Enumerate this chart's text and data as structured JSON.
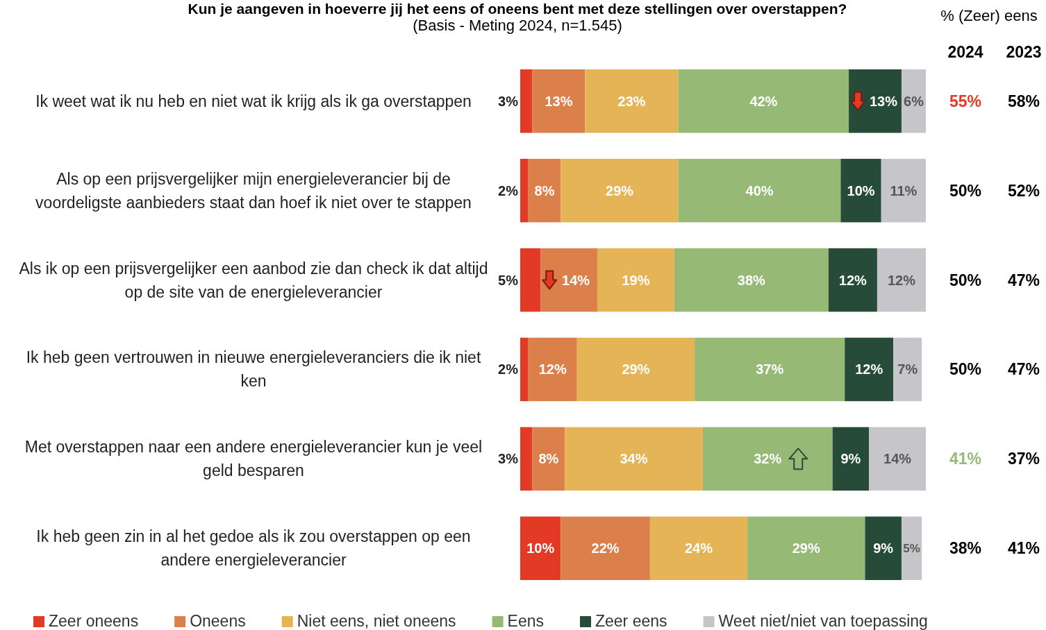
{
  "chart_data": {
    "type": "bar",
    "orientation": "horizontal",
    "stacked": true,
    "title": "Kun je aangeven in hoeverre jij het eens of oneens bent met deze stellingen over overstappen?",
    "subtitle": "(Basis - Meting 2024, n=1.545)",
    "categories": [
      "Ik weet wat ik nu heb en niet wat ik krijg als ik ga overstappen",
      "Als op een prijsvergelijker mijn energieleverancier bij de voordeligste aanbieders staat dan hoef ik niet over te stappen",
      "Als ik op een prijsvergelijker een aanbod zie dan check ik dat altijd op de site van de energieleverancier",
      "Ik heb geen vertrouwen in nieuwe energieleveranciers die ik niet ken",
      "Met overstappen naar een andere energieleverancier kun je veel geld besparen",
      "Ik heb geen zin in al het gedoe als ik zou overstappen op een andere energieleverancier"
    ],
    "tick_labels": "y",
    "legend": "bottom",
    "series": [
      {
        "name": "Zeer oneens",
        "color": "#e33a26",
        "values": [
          3,
          2,
          5,
          2,
          3,
          10
        ],
        "value_labels": [
          "3%",
          "2%",
          "5%",
          "2%",
          "3%",
          "10%"
        ]
      },
      {
        "name": "Oneens",
        "color": "#dc804b",
        "values": [
          13,
          8,
          14,
          12,
          8,
          22
        ],
        "value_labels": [
          "13%",
          "8%",
          "14%",
          "12%",
          "8%",
          "22%"
        ]
      },
      {
        "name": "Niet eens, niet oneens",
        "color": "#e4b457",
        "values": [
          23,
          29,
          19,
          29,
          34,
          24
        ],
        "value_labels": [
          "23%",
          "29%",
          "19%",
          "29%",
          "34%",
          "24%"
        ]
      },
      {
        "name": "Eens",
        "color": "#96ba76",
        "values": [
          42,
          40,
          38,
          37,
          32,
          29
        ],
        "value_labels": [
          "42%",
          "40%",
          "38%",
          "37%",
          "32%",
          "29%"
        ]
      },
      {
        "name": "Zeer eens",
        "color": "#264b39",
        "values": [
          13,
          10,
          12,
          12,
          9,
          9
        ],
        "value_labels": [
          "13%",
          "10%",
          "12%",
          "12%",
          "9%",
          "9%"
        ]
      },
      {
        "name": "Weet niet/niet van toepassing",
        "color": "#c6c5c9",
        "values": [
          6,
          11,
          12,
          7,
          14,
          5
        ],
        "value_labels": [
          "6%",
          "11%",
          "12%",
          "7%",
          "14%",
          "5%"
        ]
      }
    ],
    "annotations": [
      "% (Zeer) eens",
      "2024",
      "2023",
      "55%",
      "58%",
      "50%",
      "52%",
      "50%",
      "47%",
      "50%",
      "47%",
      "41%",
      "37%",
      "38%",
      "41%"
    ]
  }
}
